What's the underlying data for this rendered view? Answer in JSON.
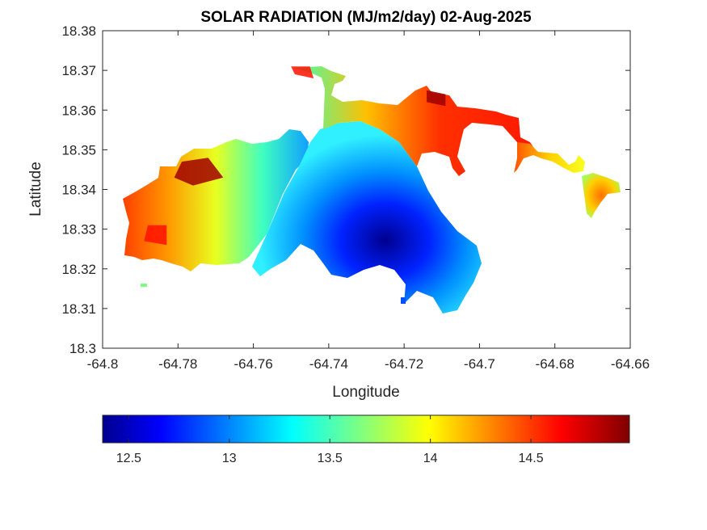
{
  "chart_data": {
    "type": "heatmap",
    "title": "SOLAR RADIATION (MJ/m2/day) 02-Aug-2025",
    "xlabel": "Longitude",
    "ylabel": "Latitude",
    "xlim": [
      -64.8,
      -64.66
    ],
    "ylim": [
      18.3,
      18.38
    ],
    "xticks": [
      -64.8,
      -64.78,
      -64.76,
      -64.74,
      -64.72,
      -64.7,
      -64.68,
      -64.66
    ],
    "xtick_labels": [
      "-64.8",
      "-64.78",
      "-64.76",
      "-64.74",
      "-64.72",
      "-64.7",
      "-64.68",
      "-64.66"
    ],
    "yticks": [
      18.3,
      18.31,
      18.32,
      18.33,
      18.34,
      18.35,
      18.36,
      18.37,
      18.38
    ],
    "ytick_labels": [
      "18.3",
      "18.31",
      "18.32",
      "18.33",
      "18.34",
      "18.35",
      "18.36",
      "18.37",
      "18.38"
    ],
    "colormap": "jet",
    "colorbar": {
      "orientation": "horizontal",
      "placement": "bottom",
      "range": [
        12.37,
        14.99
      ],
      "ticks": [
        12.5,
        13,
        13.5,
        14,
        14.5
      ],
      "tick_labels": [
        "12.5",
        "13",
        "13.5",
        "14",
        "14.5"
      ],
      "colors": [
        "#00008f",
        "#0000ff",
        "#00ffff",
        "#ffff00",
        "#ff0000",
        "#800000"
      ]
    },
    "value_regions": [
      {
        "level": "14.8",
        "color": "#a00000",
        "points": [
          [
            -64.779,
            18.347
          ],
          [
            -64.772,
            18.348
          ],
          [
            -64.768,
            18.343
          ],
          [
            -64.776,
            18.341
          ],
          [
            -64.781,
            18.343
          ]
        ]
      },
      {
        "level": "14.8",
        "color": "#a00000",
        "points": [
          [
            -64.714,
            18.365
          ],
          [
            -64.709,
            18.364
          ],
          [
            -64.709,
            18.361
          ],
          [
            -64.714,
            18.362
          ]
        ]
      },
      {
        "level": "14.6",
        "color": "#ff1000",
        "points": [
          [
            -64.788,
            18.331
          ],
          [
            -64.783,
            18.331
          ],
          [
            -64.783,
            18.326
          ],
          [
            -64.789,
            18.327
          ]
        ]
      },
      {
        "level": "14.6",
        "color": "#ff1000",
        "points": [
          [
            -64.75,
            18.371
          ],
          [
            -64.745,
            18.371
          ],
          [
            -64.744,
            18.368
          ],
          [
            -64.749,
            18.369
          ]
        ]
      }
    ]
  }
}
